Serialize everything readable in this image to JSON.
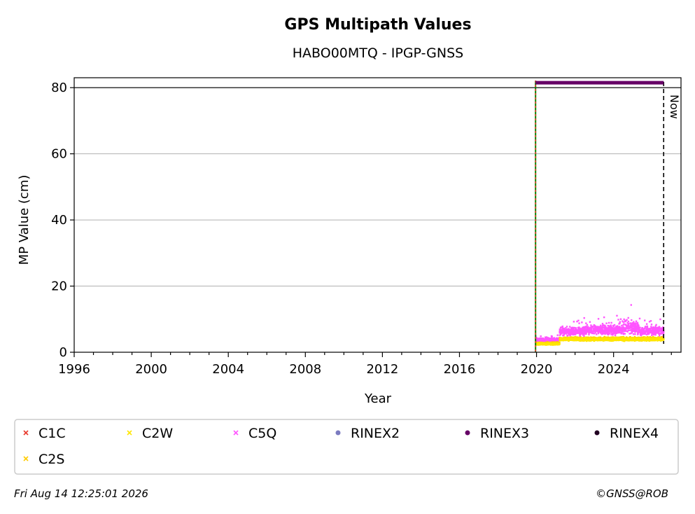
{
  "chart_data": {
    "type": "scatter",
    "title": "GPS Multipath Values",
    "subtitle": "HABO00MTQ - IPGP-GNSS",
    "xlabel": "Year",
    "ylabel": "MP Value (cm)",
    "xlim": [
      1996,
      2027.5
    ],
    "ylim": [
      0,
      83
    ],
    "x_ticks": [
      "1996",
      "2000",
      "2004",
      "2008",
      "2012",
      "2016",
      "2020",
      "2024"
    ],
    "y_ticks": [
      "0",
      "20",
      "40",
      "60",
      "80"
    ],
    "grid": "horizontal",
    "now_label": "Now",
    "now_year": 2026.6,
    "start_year": 2019.95,
    "legend": {
      "placement": "bottom",
      "entries": [
        {
          "label": "C1C",
          "color": "#e8392b",
          "marker": "x"
        },
        {
          "label": "C2W",
          "color": "#ffe600",
          "marker": "x"
        },
        {
          "label": "C5Q",
          "color": "#ff55ff",
          "marker": "x"
        },
        {
          "label": "RINEX2",
          "color": "#7b7bc0",
          "marker": "dot"
        },
        {
          "label": "RINEX3",
          "color": "#660066",
          "marker": "dot"
        },
        {
          "label": "RINEX4",
          "color": "#220022",
          "marker": "dot"
        },
        {
          "label": "C2S",
          "color": "#ffcc00",
          "marker": "x"
        }
      ]
    },
    "series": [
      {
        "name": "C5Q",
        "color": "#ff55ff",
        "segments": [
          {
            "x_start": 2019.95,
            "x_end": 2021.2,
            "mean": 3.7,
            "spread": 0.7
          },
          {
            "x_start": 2021.2,
            "x_end": 2022.5,
            "mean": 6.3,
            "spread": 1.8
          },
          {
            "x_start": 2022.5,
            "x_end": 2024.5,
            "mean": 6.8,
            "spread": 2.0
          },
          {
            "x_start": 2024.5,
            "x_end": 2025.3,
            "mean": 7.5,
            "spread": 3.0
          },
          {
            "x_start": 2025.3,
            "x_end": 2026.6,
            "mean": 6.5,
            "spread": 1.8
          }
        ]
      },
      {
        "name": "C2S",
        "color": "#ffcc00",
        "segments": [
          {
            "x_start": 2019.95,
            "x_end": 2021.2,
            "mean": 2.7,
            "spread": 0.5
          },
          {
            "x_start": 2021.2,
            "x_end": 2026.6,
            "mean": 4.1,
            "spread": 0.7
          }
        ]
      },
      {
        "name": "C2W",
        "color": "#ffe600",
        "segments": [
          {
            "x_start": 2019.95,
            "x_end": 2021.2,
            "mean": 2.5,
            "spread": 0.4
          },
          {
            "x_start": 2021.2,
            "x_end": 2026.6,
            "mean": 3.9,
            "spread": 0.6
          }
        ]
      }
    ],
    "rinex3_availability": {
      "x_start": 2019.95,
      "x_end": 2026.6,
      "y": 81.5,
      "color": "#660066"
    }
  },
  "footer": {
    "timestamp": "Fri Aug 14 12:25:01 2026",
    "copyright": "©GNSS@ROB"
  }
}
